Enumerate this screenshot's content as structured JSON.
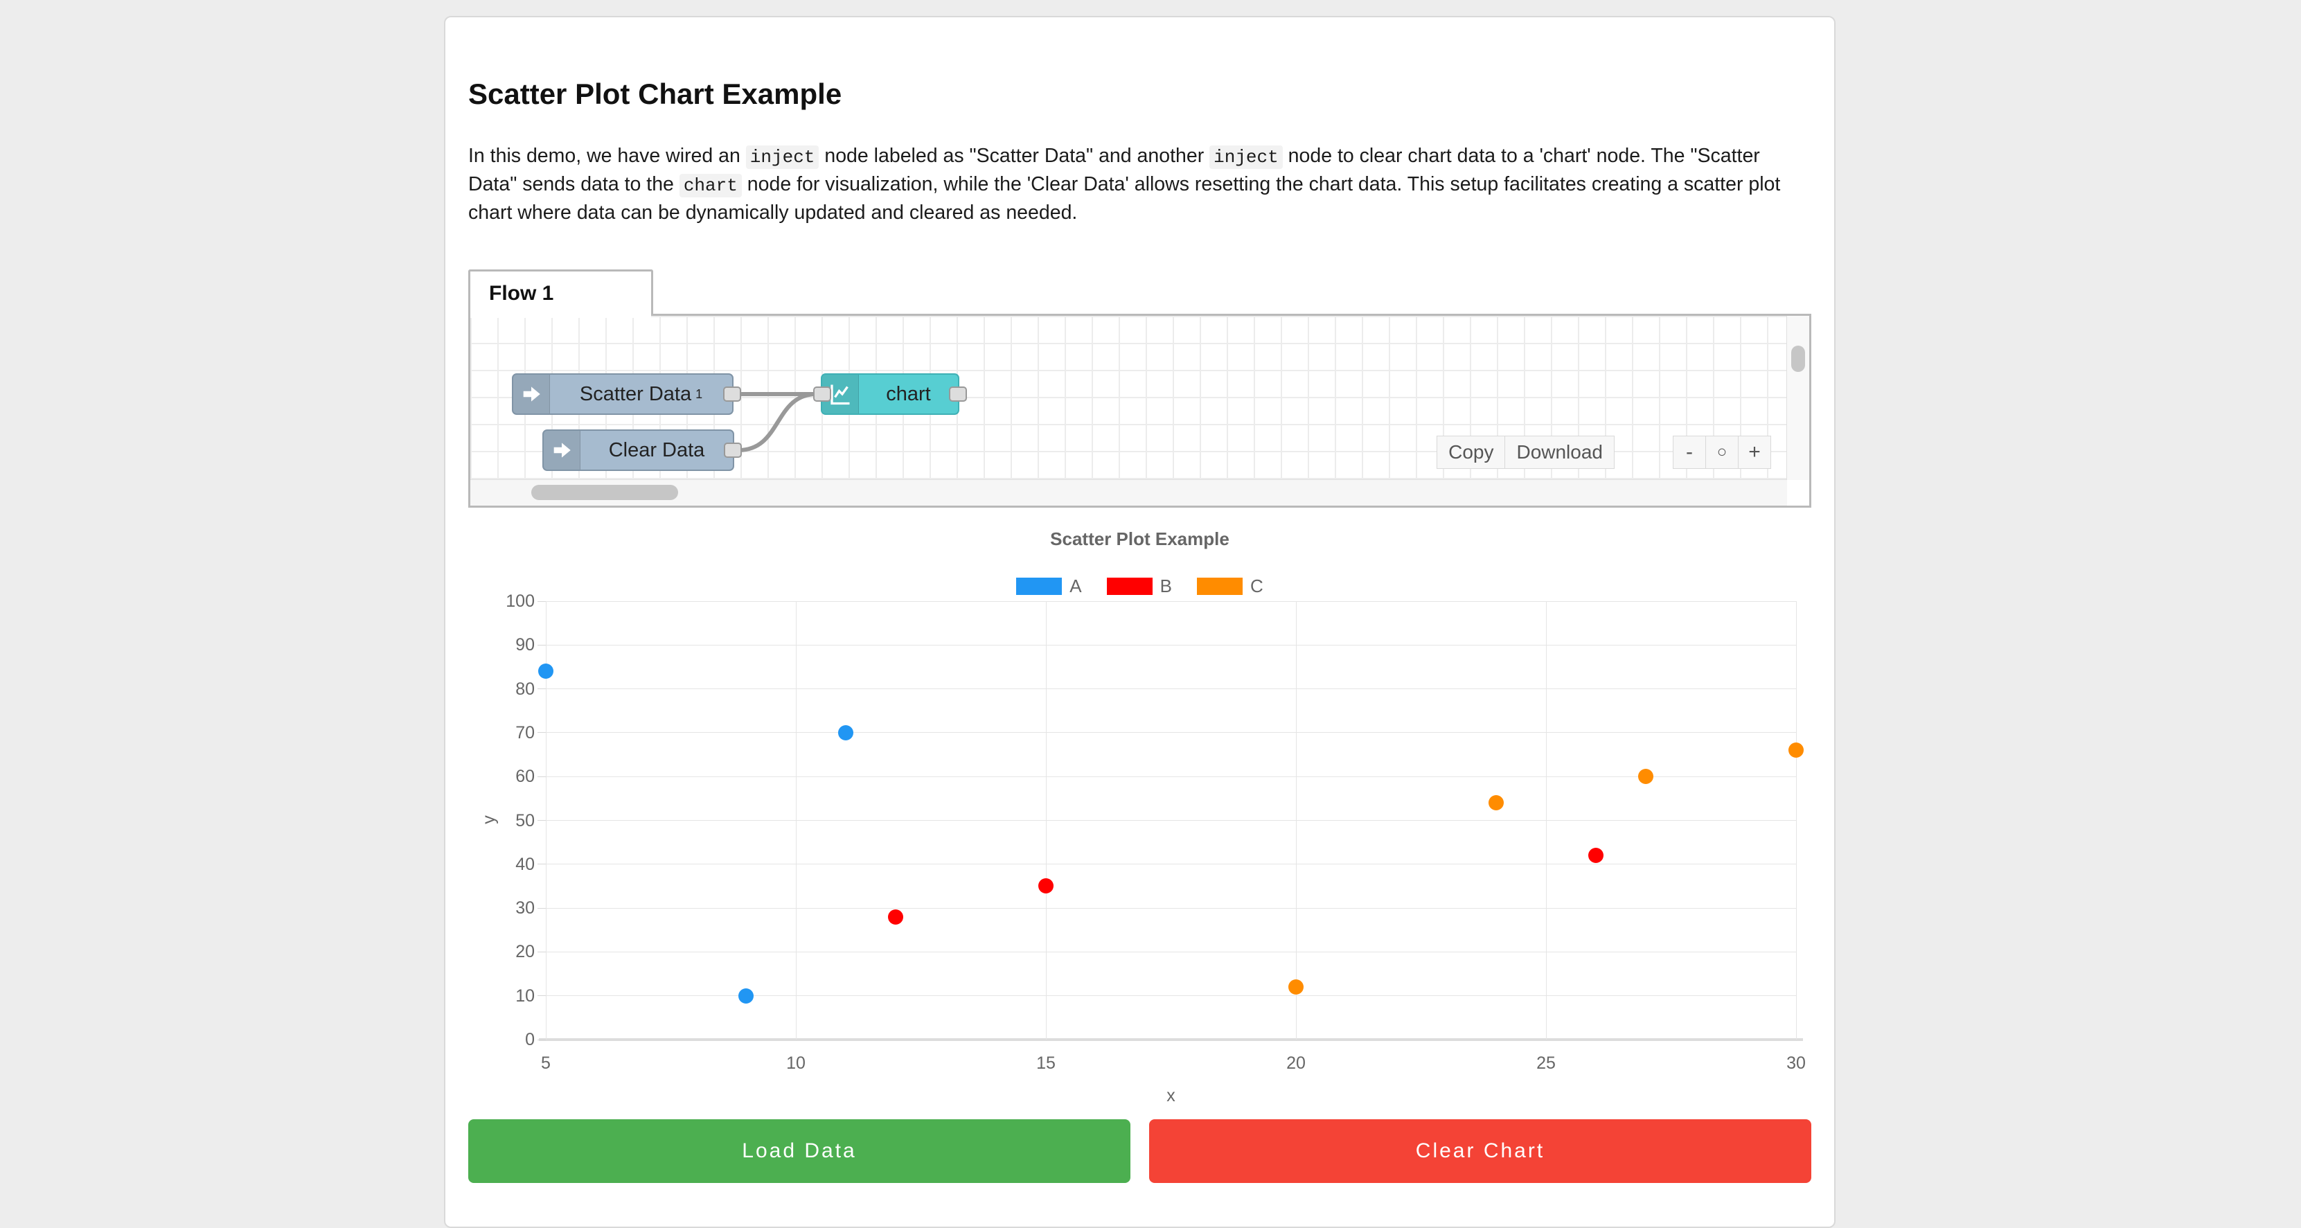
{
  "page": {
    "title": "Scatter Plot Chart Example"
  },
  "paragraph": {
    "segments": [
      {
        "code": false,
        "text": "In this demo, we have wired an "
      },
      {
        "code": true,
        "text": "inject"
      },
      {
        "code": false,
        "text": " node labeled as \"Scatter Data\" and another "
      },
      {
        "code": true,
        "text": "inject"
      },
      {
        "code": false,
        "text": " node to clear chart data to a 'chart' node. The \"Scatter Data\" sends data to the "
      },
      {
        "code": true,
        "text": "chart"
      },
      {
        "code": false,
        "text": " node for visualization, while the 'Clear Data' allows resetting the chart data. This setup facilitates creating a scatter plot chart where data can be dynamically updated and cleared as needed."
      }
    ]
  },
  "flow": {
    "tab_label": "Flow 1",
    "nodes": [
      {
        "label": "Scatter Data",
        "sup": "1",
        "type": "inject"
      },
      {
        "label": "Clear Data",
        "sup": "",
        "type": "inject"
      },
      {
        "label": "chart",
        "sup": "",
        "type": "chart"
      }
    ],
    "actions": {
      "copy": "Copy",
      "download": "Download"
    },
    "zoom_controls": {
      "out": "-",
      "reset": "○",
      "in": "+"
    },
    "colors": {
      "inject_node": "#a6bbcf",
      "chart_node": "#57ced2",
      "wire": "#999999"
    }
  },
  "chart_data": {
    "type": "scatter",
    "title": "Scatter Plot Example",
    "xlabel": "x",
    "ylabel": "y",
    "xlim": [
      5,
      30
    ],
    "ylim": [
      0,
      100
    ],
    "x_ticks": [
      5,
      10,
      15,
      20,
      25,
      30
    ],
    "y_ticks": [
      0,
      10,
      20,
      30,
      40,
      50,
      60,
      70,
      80,
      90,
      100
    ],
    "grid": true,
    "legend_position": "top",
    "series": [
      {
        "name": "A",
        "color": "#2196f3",
        "points": [
          [
            5,
            84
          ],
          [
            9,
            10
          ],
          [
            11,
            70
          ]
        ]
      },
      {
        "name": "B",
        "color": "#ff0000",
        "points": [
          [
            12,
            28
          ],
          [
            15,
            35
          ],
          [
            26,
            42
          ]
        ]
      },
      {
        "name": "C",
        "color": "#ff8c00",
        "points": [
          [
            20,
            12
          ],
          [
            24,
            54
          ],
          [
            27,
            60
          ],
          [
            30,
            66
          ]
        ]
      }
    ]
  },
  "actions": {
    "load": {
      "label": "Load Data",
      "color": "#4caf50"
    },
    "clear": {
      "label": "Clear Chart",
      "color": "#f44336"
    }
  }
}
